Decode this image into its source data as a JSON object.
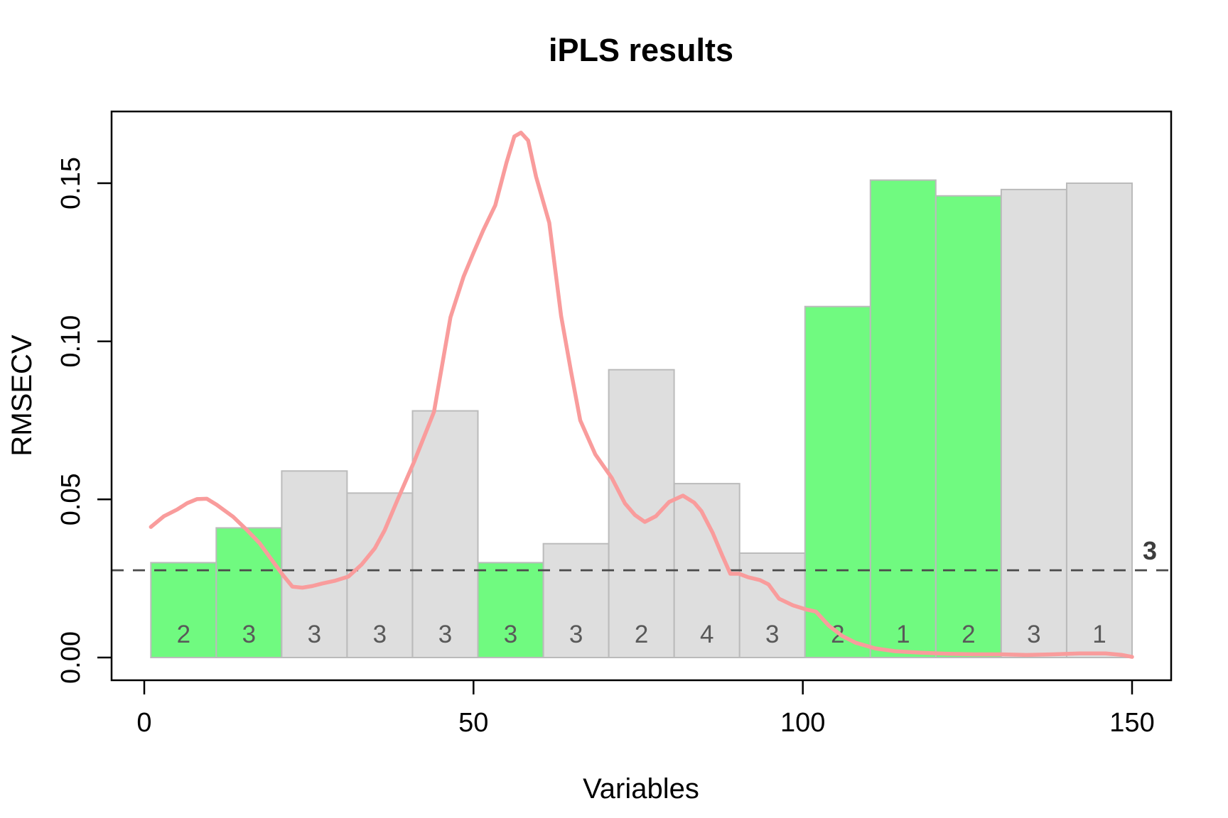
{
  "title": "iPLS results",
  "chart_data": {
    "type": "bar+line",
    "title": "iPLS results",
    "xlabel": "Variables",
    "ylabel": "RMSECV",
    "x_ticks": [
      0,
      50,
      100,
      150
    ],
    "x_tick_labels": [
      "0",
      "50",
      "100",
      "150"
    ],
    "y_ticks": [
      0,
      0.05,
      0.1,
      0.15
    ],
    "y_tick_labels": [
      "0.00",
      "0.05",
      "0.10",
      "0.15"
    ],
    "xlim": [
      -5,
      157
    ],
    "ylim": [
      -0.007,
      0.173
    ],
    "grid": false,
    "legend": "none",
    "bars_span_variables": [
      1,
      150
    ],
    "threshold": {
      "value": 0.0276,
      "label": "3",
      "style": "dashed",
      "meaning": "global model RMSECV with 3 components"
    },
    "intervals": [
      {
        "interval": 1,
        "from": 1,
        "to": 10,
        "rmsecv": 0.03,
        "ncomp": "2",
        "selected": true
      },
      {
        "interval": 2,
        "from": 11,
        "to": 20,
        "rmsecv": 0.041,
        "ncomp": "3",
        "selected": true
      },
      {
        "interval": 3,
        "from": 21,
        "to": 30,
        "rmsecv": 0.059,
        "ncomp": "3",
        "selected": false
      },
      {
        "interval": 4,
        "from": 31,
        "to": 40,
        "rmsecv": 0.052,
        "ncomp": "3",
        "selected": false
      },
      {
        "interval": 5,
        "from": 41,
        "to": 50,
        "rmsecv": 0.078,
        "ncomp": "3",
        "selected": false
      },
      {
        "interval": 6,
        "from": 51,
        "to": 60,
        "rmsecv": 0.03,
        "ncomp": "3",
        "selected": true
      },
      {
        "interval": 7,
        "from": 61,
        "to": 70,
        "rmsecv": 0.036,
        "ncomp": "3",
        "selected": false
      },
      {
        "interval": 8,
        "from": 71,
        "to": 80,
        "rmsecv": 0.091,
        "ncomp": "2",
        "selected": false
      },
      {
        "interval": 9,
        "from": 81,
        "to": 90,
        "rmsecv": 0.055,
        "ncomp": "4",
        "selected": false
      },
      {
        "interval": 10,
        "from": 91,
        "to": 100,
        "rmsecv": 0.033,
        "ncomp": "3",
        "selected": false
      },
      {
        "interval": 11,
        "from": 101,
        "to": 110,
        "rmsecv": 0.111,
        "ncomp": "2",
        "selected": true
      },
      {
        "interval": 12,
        "from": 111,
        "to": 120,
        "rmsecv": 0.151,
        "ncomp": "1",
        "selected": true
      },
      {
        "interval": 13,
        "from": 121,
        "to": 130,
        "rmsecv": 0.146,
        "ncomp": "2",
        "selected": true
      },
      {
        "interval": 14,
        "from": 131,
        "to": 140,
        "rmsecv": 0.148,
        "ncomp": "3",
        "selected": false
      },
      {
        "interval": 15,
        "from": 141,
        "to": 150,
        "rmsecv": 0.15,
        "ncomp": "1",
        "selected": false
      }
    ],
    "line": {
      "name": "rmsecv-curve",
      "points": [
        [
          1,
          0.0413
        ],
        [
          3,
          0.0447
        ],
        [
          5,
          0.0468
        ],
        [
          6.5,
          0.0488
        ],
        [
          8,
          0.0501
        ],
        [
          9.5,
          0.0502
        ],
        [
          11,
          0.0483
        ],
        [
          13.5,
          0.0445
        ],
        [
          15.5,
          0.0405
        ],
        [
          17.5,
          0.0362
        ],
        [
          19.5,
          0.0305
        ],
        [
          21,
          0.0262
        ],
        [
          22.5,
          0.0224
        ],
        [
          24,
          0.0221
        ],
        [
          25.5,
          0.0226
        ],
        [
          27,
          0.0234
        ],
        [
          29,
          0.0243
        ],
        [
          31,
          0.0256
        ],
        [
          33,
          0.0294
        ],
        [
          35,
          0.0345
        ],
        [
          36.5,
          0.0402
        ],
        [
          38.5,
          0.0501
        ],
        [
          41,
          0.062
        ],
        [
          44,
          0.0777
        ],
        [
          46.5,
          0.1076
        ],
        [
          48.5,
          0.1205
        ],
        [
          50,
          0.128
        ],
        [
          51.5,
          0.1352
        ],
        [
          53.3,
          0.143
        ],
        [
          55,
          0.1565
        ],
        [
          56.2,
          0.1648
        ],
        [
          57.2,
          0.166
        ],
        [
          58.3,
          0.1635
        ],
        [
          59.5,
          0.152
        ],
        [
          61.5,
          0.1375
        ],
        [
          63.3,
          0.108
        ],
        [
          64.8,
          0.0905
        ],
        [
          66.2,
          0.075
        ],
        [
          68.5,
          0.0642
        ],
        [
          71,
          0.0568
        ],
        [
          73,
          0.0487
        ],
        [
          74.5,
          0.0451
        ],
        [
          76,
          0.0429
        ],
        [
          77.7,
          0.0447
        ],
        [
          79.7,
          0.0492
        ],
        [
          81.8,
          0.0512
        ],
        [
          83.5,
          0.049
        ],
        [
          84.6,
          0.0463
        ],
        [
          86.3,
          0.0395
        ],
        [
          87.8,
          0.0321
        ],
        [
          89,
          0.0265
        ],
        [
          90.3,
          0.0265
        ],
        [
          91.7,
          0.0254
        ],
        [
          93.5,
          0.0245
        ],
        [
          94.8,
          0.0231
        ],
        [
          96.4,
          0.0186
        ],
        [
          98.5,
          0.0165
        ],
        [
          100.5,
          0.0152
        ],
        [
          102,
          0.0145
        ],
        [
          104,
          0.01
        ],
        [
          106,
          0.0068
        ],
        [
          108,
          0.0047
        ],
        [
          111,
          0.0029
        ],
        [
          114,
          0.002
        ],
        [
          118,
          0.0015
        ],
        [
          122,
          0.0012
        ],
        [
          126,
          0.001
        ],
        [
          130,
          0.001
        ],
        [
          134,
          0.0008
        ],
        [
          138,
          0.001
        ],
        [
          142,
          0.0013
        ],
        [
          146,
          0.0013
        ],
        [
          148.5,
          0.0008
        ],
        [
          150,
          0.0002
        ]
      ]
    },
    "colors": {
      "selected_bar_fill": "#70FA80",
      "unselected_bar_fill": "#DEDEDE",
      "bar_border": "#BBBBBB",
      "line": "#F99C9C",
      "threshold_line": "#4a4a4a",
      "ncomp_label": "#595959",
      "text": "#000000",
      "background": "#ffffff"
    }
  }
}
